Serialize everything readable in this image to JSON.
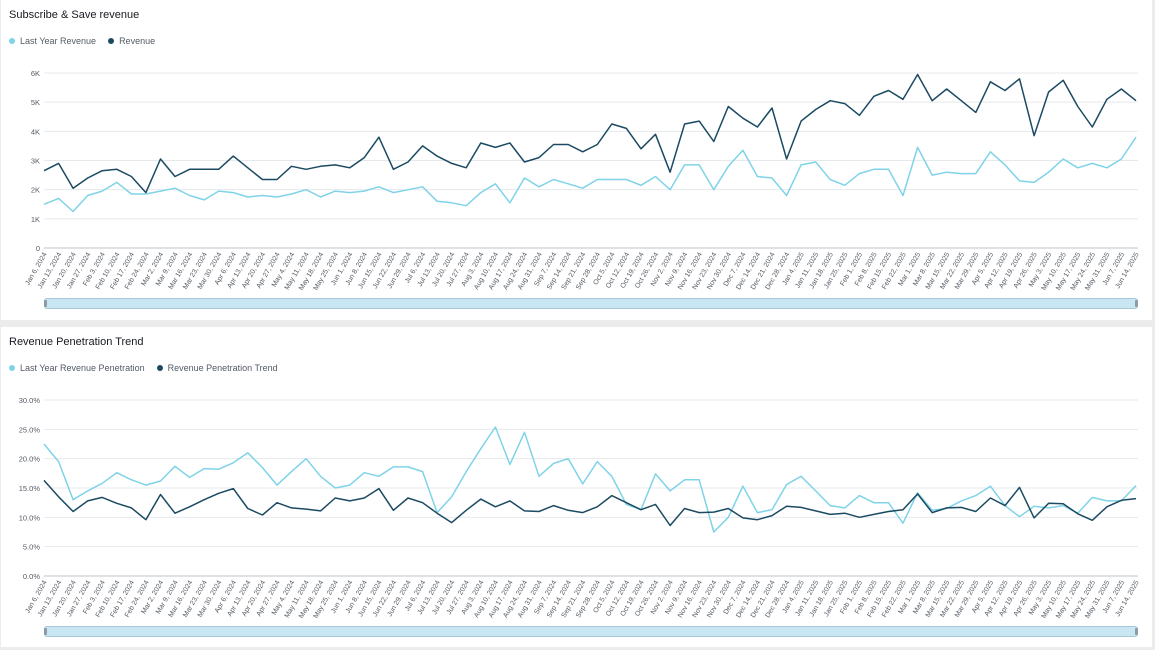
{
  "chart_data": [
    {
      "type": "line",
      "title": "Subscribe & Save revenue",
      "categories": [
        "Jan 6, 2024",
        "Jan 13, 2024",
        "Jan 20, 2024",
        "Jan 27, 2024",
        "Feb 3, 2024",
        "Feb 10, 2024",
        "Feb 17, 2024",
        "Feb 24, 2024",
        "Mar 2, 2024",
        "Mar 9, 2024",
        "Mar 16, 2024",
        "Mar 23, 2024",
        "Mar 30, 2024",
        "Apr 6, 2024",
        "Apr 13, 2024",
        "Apr 20, 2024",
        "Apr 27, 2024",
        "May 4, 2024",
        "May 11, 2024",
        "May 18, 2024",
        "May 25, 2024",
        "Jun 1, 2024",
        "Jun 8, 2024",
        "Jun 15, 2024",
        "Jun 22, 2024",
        "Jun 29, 2024",
        "Jul 6, 2024",
        "Jul 13, 2024",
        "Jul 20, 2024",
        "Jul 27, 2024",
        "Aug 3, 2024",
        "Aug 10, 2024",
        "Aug 17, 2024",
        "Aug 24, 2024",
        "Aug 31, 2024",
        "Sep 7, 2024",
        "Sep 14, 2024",
        "Sep 21, 2024",
        "Sep 28, 2024",
        "Oct 5, 2024",
        "Oct 12, 2024",
        "Oct 19, 2024",
        "Oct 26, 2024",
        "Nov 2, 2024",
        "Nov 9, 2024",
        "Nov 16, 2024",
        "Nov 23, 2024",
        "Nov 30, 2024",
        "Dec 7, 2024",
        "Dec 14, 2024",
        "Dec 21, 2024",
        "Dec 28, 2024",
        "Jan 4, 2025",
        "Jan 11, 2025",
        "Jan 18, 2025",
        "Jan 25, 2025",
        "Feb 1, 2025",
        "Feb 8, 2025",
        "Feb 15, 2025",
        "Feb 22, 2025",
        "Mar 1, 2025",
        "Mar 8, 2025",
        "Mar 15, 2025",
        "Mar 22, 2025",
        "Mar 29, 2025",
        "Apr 5, 2025",
        "Apr 12, 2025",
        "Apr 19, 2025",
        "Apr 26, 2025",
        "May 3, 2025",
        "May 10, 2025",
        "May 17, 2025",
        "May 24, 2025",
        "May 31, 2025",
        "Jun 7, 2025",
        "Jun 14, 2025"
      ],
      "tick_labels": [
        "Jan 6, 2024",
        "Jan 13, 2024",
        "Jan 20, 2024",
        "Jan 27, 2024",
        "Feb 3, 2024",
        "Feb 10, 2024",
        "Feb 17, 2024",
        "Feb 24, 2024",
        "Mar 2, 2024",
        "Mar 9, 2024",
        "Mar 16, 2024",
        "Mar 23, 2024",
        "Mar 30, 2024",
        "Apr 6, 2024",
        "Apr 13, 2024",
        "Apr 20, 2024",
        "Apr 27, 2024",
        "May 4, 2024",
        "May 11, 2024",
        "May 18, 2024",
        "May 25, 2024",
        "Jun 1, 2024",
        "Jun 8, 2024",
        "Jun 15, 2024",
        "Jun 22, 2024",
        "Jun 29, 2024",
        "Jul 6, 2024",
        "Jul 13, 2024",
        "Jul 20, 2024",
        "Jul 27, 2024",
        "Aug 3, 2024",
        "Aug 10, 2024",
        "Aug 17, 2024",
        "Aug 24, 2024",
        "Aug 31, 2024",
        "Sep 7, 2024",
        "Sep 14, 2024",
        "Sep 21, 2024",
        "Sep 28, 2024",
        "Oct 5, 2024",
        "Oct 12, 2024",
        "Oct 19, 2024",
        "Oct 26, 2024",
        "Nov 2, 2024",
        "Nov 9, 2024",
        "Nov 16, 2024",
        "Nov 23, 2024",
        "Nov 30, 2024",
        "Dec 7, 2024",
        "Dec 14, 2024",
        "Dec 21, 2024",
        "Dec 28, 2024",
        "Jan 4, 2025",
        "Jan 11, 2025",
        "Jan 18, 2025",
        "Jan 25, 2025",
        "Feb 1, 2025",
        "Feb 8, 2025",
        "Feb 15, 2025",
        "Feb 22, 2025",
        "Mar 1, 2025",
        "Mar 8, 2025",
        "Mar 15, 2025",
        "Mar 22, 2025",
        "Mar 29, 2025",
        "Apr 5, 2025",
        "Apr 12, 2025",
        "Apr 19, 2025",
        "Apr 26, 2025",
        "May 3, 2025",
        "May 10, 2025",
        "May 17, 2025",
        "May 24, 2025",
        "May 31, 2025",
        "Jun 7, 2025",
        "Jun 14, 2025"
      ],
      "series": [
        {
          "name": "Last Year Revenue",
          "color": "#7fd3e8",
          "values": [
            1500,
            1700,
            1250,
            1800,
            1950,
            2250,
            1850,
            1850,
            1950,
            2050,
            1800,
            1650,
            1950,
            1900,
            1750,
            1800,
            1750,
            1850,
            2000,
            1750,
            1950,
            1900,
            1950,
            2100,
            1900,
            2000,
            2100,
            1600,
            1550,
            1450,
            1900,
            2200,
            1550,
            2400,
            2100,
            2350,
            2200,
            2050,
            2350,
            2350,
            2350,
            2150,
            2450,
            2000,
            2850,
            2850,
            2000,
            2800,
            3350,
            2450,
            2400,
            1800,
            2850,
            2950,
            2350,
            2150,
            2550,
            2700,
            2700,
            1800,
            3450,
            2500,
            2600,
            2550,
            2550,
            3300,
            2850,
            2300,
            2250,
            2600,
            3050,
            2750,
            2900,
            2750,
            3050,
            3800
          ]
        },
        {
          "name": "Revenue",
          "color": "#1b4a62",
          "values": [
            2650,
            2900,
            2050,
            2400,
            2650,
            2700,
            2450,
            1900,
            3050,
            2450,
            2700,
            2700,
            2700,
            3150,
            2750,
            2350,
            2350,
            2800,
            2700,
            2800,
            2850,
            2750,
            3100,
            3800,
            2700,
            2950,
            3500,
            3150,
            2900,
            2750,
            3600,
            3450,
            3600,
            2950,
            3100,
            3550,
            3550,
            3300,
            3550,
            4250,
            4100,
            3400,
            3900,
            2600,
            4250,
            4350,
            3650,
            4850,
            4450,
            4150,
            4800,
            3050,
            4350,
            4750,
            5050,
            4950,
            4550,
            5200,
            5400,
            5100,
            5950,
            5050,
            5450,
            5050,
            4650,
            5700,
            5400,
            5800,
            3850,
            5350,
            5750,
            4850,
            4150,
            5100,
            5450,
            5050
          ]
        }
      ],
      "yticks": [
        "0",
        "1K",
        "2K",
        "3K",
        "4K",
        "5K",
        "6K"
      ],
      "ylim": [
        0,
        6000
      ],
      "grid": true,
      "legend": "top-left"
    },
    {
      "type": "line",
      "title": "Revenue Penetration Trend",
      "categories": [
        "Jan 6, 2024",
        "Jan 13, 2024",
        "Jan 20, 2024",
        "Jan 27, 2024",
        "Feb 3, 2024",
        "Feb 10, 2024",
        "Feb 17, 2024",
        "Feb 24, 2024",
        "Mar 2, 2024",
        "Mar 9, 2024",
        "Mar 16, 2024",
        "Mar 23, 2024",
        "Mar 30, 2024",
        "Apr 6, 2024",
        "Apr 13, 2024",
        "Apr 20, 2024",
        "Apr 27, 2024",
        "May 4, 2024",
        "May 11, 2024",
        "May 18, 2024",
        "May 25, 2024",
        "Jun 1, 2024",
        "Jun 8, 2024",
        "Jun 15, 2024",
        "Jun 22, 2024",
        "Jun 29, 2024",
        "Jul 6, 2024",
        "Jul 13, 2024",
        "Jul 20, 2024",
        "Jul 27, 2024",
        "Aug 3, 2024",
        "Aug 10, 2024",
        "Aug 17, 2024",
        "Aug 24, 2024",
        "Aug 31, 2024",
        "Sep 7, 2024",
        "Sep 14, 2024",
        "Sep 21, 2024",
        "Sep 28, 2024",
        "Oct 5, 2024",
        "Oct 12, 2024",
        "Oct 19, 2024",
        "Oct 26, 2024",
        "Nov 2, 2024",
        "Nov 9, 2024",
        "Nov 16, 2024",
        "Nov 23, 2024",
        "Nov 30, 2024",
        "Dec 7, 2024",
        "Dec 14, 2024",
        "Dec 21, 2024",
        "Dec 28, 2024",
        "Jan 4, 2025",
        "Jan 11, 2025",
        "Jan 18, 2025",
        "Jan 25, 2025",
        "Feb 1, 2025",
        "Feb 8, 2025",
        "Feb 15, 2025",
        "Feb 22, 2025",
        "Mar 1, 2025",
        "Mar 8, 2025",
        "Mar 15, 2025",
        "Mar 22, 2025",
        "Mar 29, 2025",
        "Apr 5, 2025",
        "Apr 12, 2025",
        "Apr 19, 2025",
        "Apr 26, 2025",
        "May 3, 2025",
        "May 10, 2025",
        "May 17, 2025",
        "May 24, 2025",
        "May 31, 2025",
        "Jun 7, 2025",
        "Jun 14, 2025"
      ],
      "tick_labels": [
        "Jan 6, 2024",
        "Jan 13, 2024",
        "Jan 20, 2024",
        "Jan 27, 2024",
        "Feb 3, 2024",
        "Feb 10, 2024",
        "Feb 17, 2024",
        "Feb 24, 2024",
        "Mar 2, 2024",
        "Mar 9, 2024",
        "Mar 16, 2024",
        "Mar 23, 2024",
        "Mar 30, 2024",
        "Apr 6, 2024",
        "Apr 13, 2024",
        "Apr 20, 2024",
        "Apr 27, 2024",
        "May 4, 2024",
        "May 11, 2024",
        "May 18, 2024",
        "May 25, 2024",
        "Jun 1, 2024",
        "Jun 8, 2024",
        "Jun 15, 2024",
        "Jun 22, 2024",
        "Jun 29, 2024",
        "Jul 6, 2024",
        "Jul 13, 2024",
        "Jul 20, 2024",
        "Jul 27, 2024",
        "Aug 3, 2024",
        "Aug 10, 2024",
        "Aug 17, 2024",
        "Aug 24, 2024",
        "Aug 31, 2024",
        "Sep 7, 2024",
        "Sep 14, 2024",
        "Sep 21, 2024",
        "Sep 28, 2024",
        "Oct 5, 2024",
        "Oct 12, 2024",
        "Oct 19, 2024",
        "Oct 26, 2024",
        "Nov 2, 2024",
        "Nov 9, 2024",
        "Nov 16, 2024",
        "Nov 23, 2024",
        "Nov 30, 2024",
        "Dec 7, 2024",
        "Dec 14, 2024",
        "Dec 21, 2024",
        "Dec 28, 2024",
        "Jan 4, 2025",
        "Jan 11, 2025",
        "Jan 18, 2025",
        "Jan 25, 2025",
        "Feb 1, 2025",
        "Feb 8, 2025",
        "Feb 15, 2025",
        "Feb 22, 2025",
        "Mar 1, 2025",
        "Mar 8, 2025",
        "Mar 15, 2025",
        "Mar 22, 2025",
        "Mar 29, 2025",
        "Apr 5, 2025",
        "Apr 12, 2025",
        "Apr 19, 2025",
        "Apr 26, 2025",
        "May 3, 2025",
        "May 10, 2025",
        "May 17, 2025",
        "May 24, 2025",
        "May 31, 2025",
        "Jun 7, 2025",
        "Jun 14, 2025"
      ],
      "series": [
        {
          "name": "Last Year Revenue Penetration",
          "color": "#7fd3e8",
          "values": [
            22.5,
            19.5,
            13.0,
            14.5,
            15.8,
            17.6,
            16.4,
            15.5,
            16.2,
            18.7,
            16.8,
            18.3,
            18.2,
            19.3,
            21.0,
            18.5,
            15.5,
            17.8,
            20.0,
            17.0,
            15.0,
            15.5,
            17.6,
            17.0,
            18.6,
            18.6,
            17.8,
            10.8,
            13.5,
            17.8,
            21.7,
            25.4,
            19.0,
            24.5,
            17.0,
            19.2,
            20.0,
            15.7,
            19.5,
            17.0,
            12.2,
            11.3,
            17.4,
            14.5,
            16.4,
            16.4,
            7.5,
            10.0,
            15.3,
            10.8,
            11.3,
            15.6,
            17.0,
            14.5,
            12.0,
            11.6,
            13.7,
            12.5,
            12.5,
            9.0,
            14.2,
            11.2,
            11.5,
            12.8,
            13.7,
            15.3,
            12.0,
            10.1,
            11.9,
            11.6,
            12.0,
            10.7,
            13.4,
            12.8,
            12.8,
            15.4
          ]
        },
        {
          "name": "Revenue Penetration Trend",
          "color": "#1b4a62",
          "values": [
            16.3,
            13.5,
            11.0,
            12.8,
            13.4,
            12.4,
            11.6,
            9.6,
            13.9,
            10.7,
            11.8,
            13.0,
            14.1,
            14.9,
            11.5,
            10.4,
            12.5,
            11.6,
            11.4,
            11.1,
            13.3,
            12.8,
            13.3,
            14.9,
            11.2,
            13.3,
            12.5,
            10.7,
            9.1,
            11.2,
            13.1,
            11.8,
            12.8,
            11.1,
            11.0,
            12.0,
            11.2,
            10.8,
            11.8,
            13.7,
            12.5,
            11.3,
            12.2,
            8.6,
            11.5,
            10.8,
            10.9,
            11.5,
            9.9,
            9.6,
            10.3,
            11.9,
            11.7,
            11.1,
            10.5,
            10.7,
            10.0,
            10.5,
            11.0,
            11.3,
            14.0,
            10.8,
            11.6,
            11.7,
            11.0,
            13.3,
            12.0,
            15.1,
            9.9,
            12.4,
            12.3,
            10.6,
            9.5,
            11.8,
            12.9,
            13.2
          ]
        }
      ],
      "yticks": [
        "0.0%",
        "5.0%",
        "10.0%",
        "15.0%",
        "20.0%",
        "25.0%",
        "30.0%"
      ],
      "ylim": [
        0,
        30
      ],
      "grid": true,
      "legend": "top-left"
    }
  ]
}
